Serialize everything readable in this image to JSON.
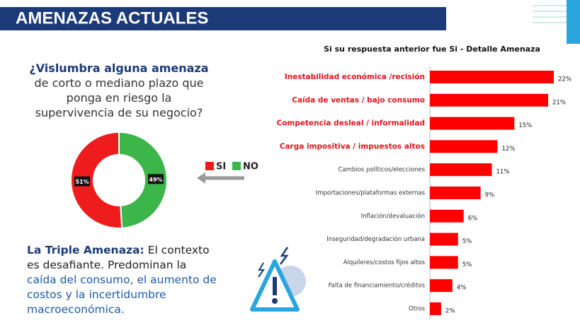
{
  "header": {
    "title": "AMENAZAS ACTUALES"
  },
  "question": {
    "lead": "¿Vislumbra alguna amenaza",
    "lines": [
      "de corto o mediano plazo que",
      "ponga en riesgo la",
      "supervivencia de su negocio?"
    ]
  },
  "conclusion": {
    "lead": "La Triple Amenaza:",
    "text": "El contexto es desafiante. Predominan la",
    "highlight": "caída del consumo, el aumento de costos y la incertidumbre macroeconómica."
  },
  "chart_data": [
    {
      "type": "pie",
      "categories": [
        "SI",
        "NO"
      ],
      "values": [
        51,
        49
      ],
      "value_labels": [
        "51%",
        "49%"
      ],
      "colors": [
        "#ee1c1c",
        "#3cb54a"
      ],
      "legend": "right"
    },
    {
      "type": "hbar",
      "title": "Si su respuesta anterior fue Si - Detalle Amenaza",
      "categories": [
        "Inestabilidad económica /recisión",
        "Caída de ventas / bajo consumo",
        "Competencia desleal / informalidad",
        "Carga impositiva / impuestos altos",
        "Cambios políticos/elecciones",
        "Importaciones/plataformas externas",
        "Inflación/devaluación",
        "Inseguridad/degradación urbana",
        "Alquileres/costos fijos altos",
        "Falta de financiamiento/créditos",
        "Otros"
      ],
      "values": [
        22,
        21,
        15,
        12,
        11,
        9,
        6,
        5,
        5,
        4,
        2
      ],
      "value_labels": [
        "22%",
        "21%",
        "15%",
        "12%",
        "11%",
        "9%",
        "6%",
        "5%",
        "5%",
        "4%",
        "2%"
      ],
      "label_colors": [
        "#e0141e",
        "#e0141e",
        "#e0141e",
        "#e0141e",
        "#333333",
        "#333333",
        "#333333",
        "#333333",
        "#333333",
        "#333333",
        "#333333"
      ],
      "color": "#ff0000",
      "xlim": [
        0,
        22
      ]
    }
  ]
}
